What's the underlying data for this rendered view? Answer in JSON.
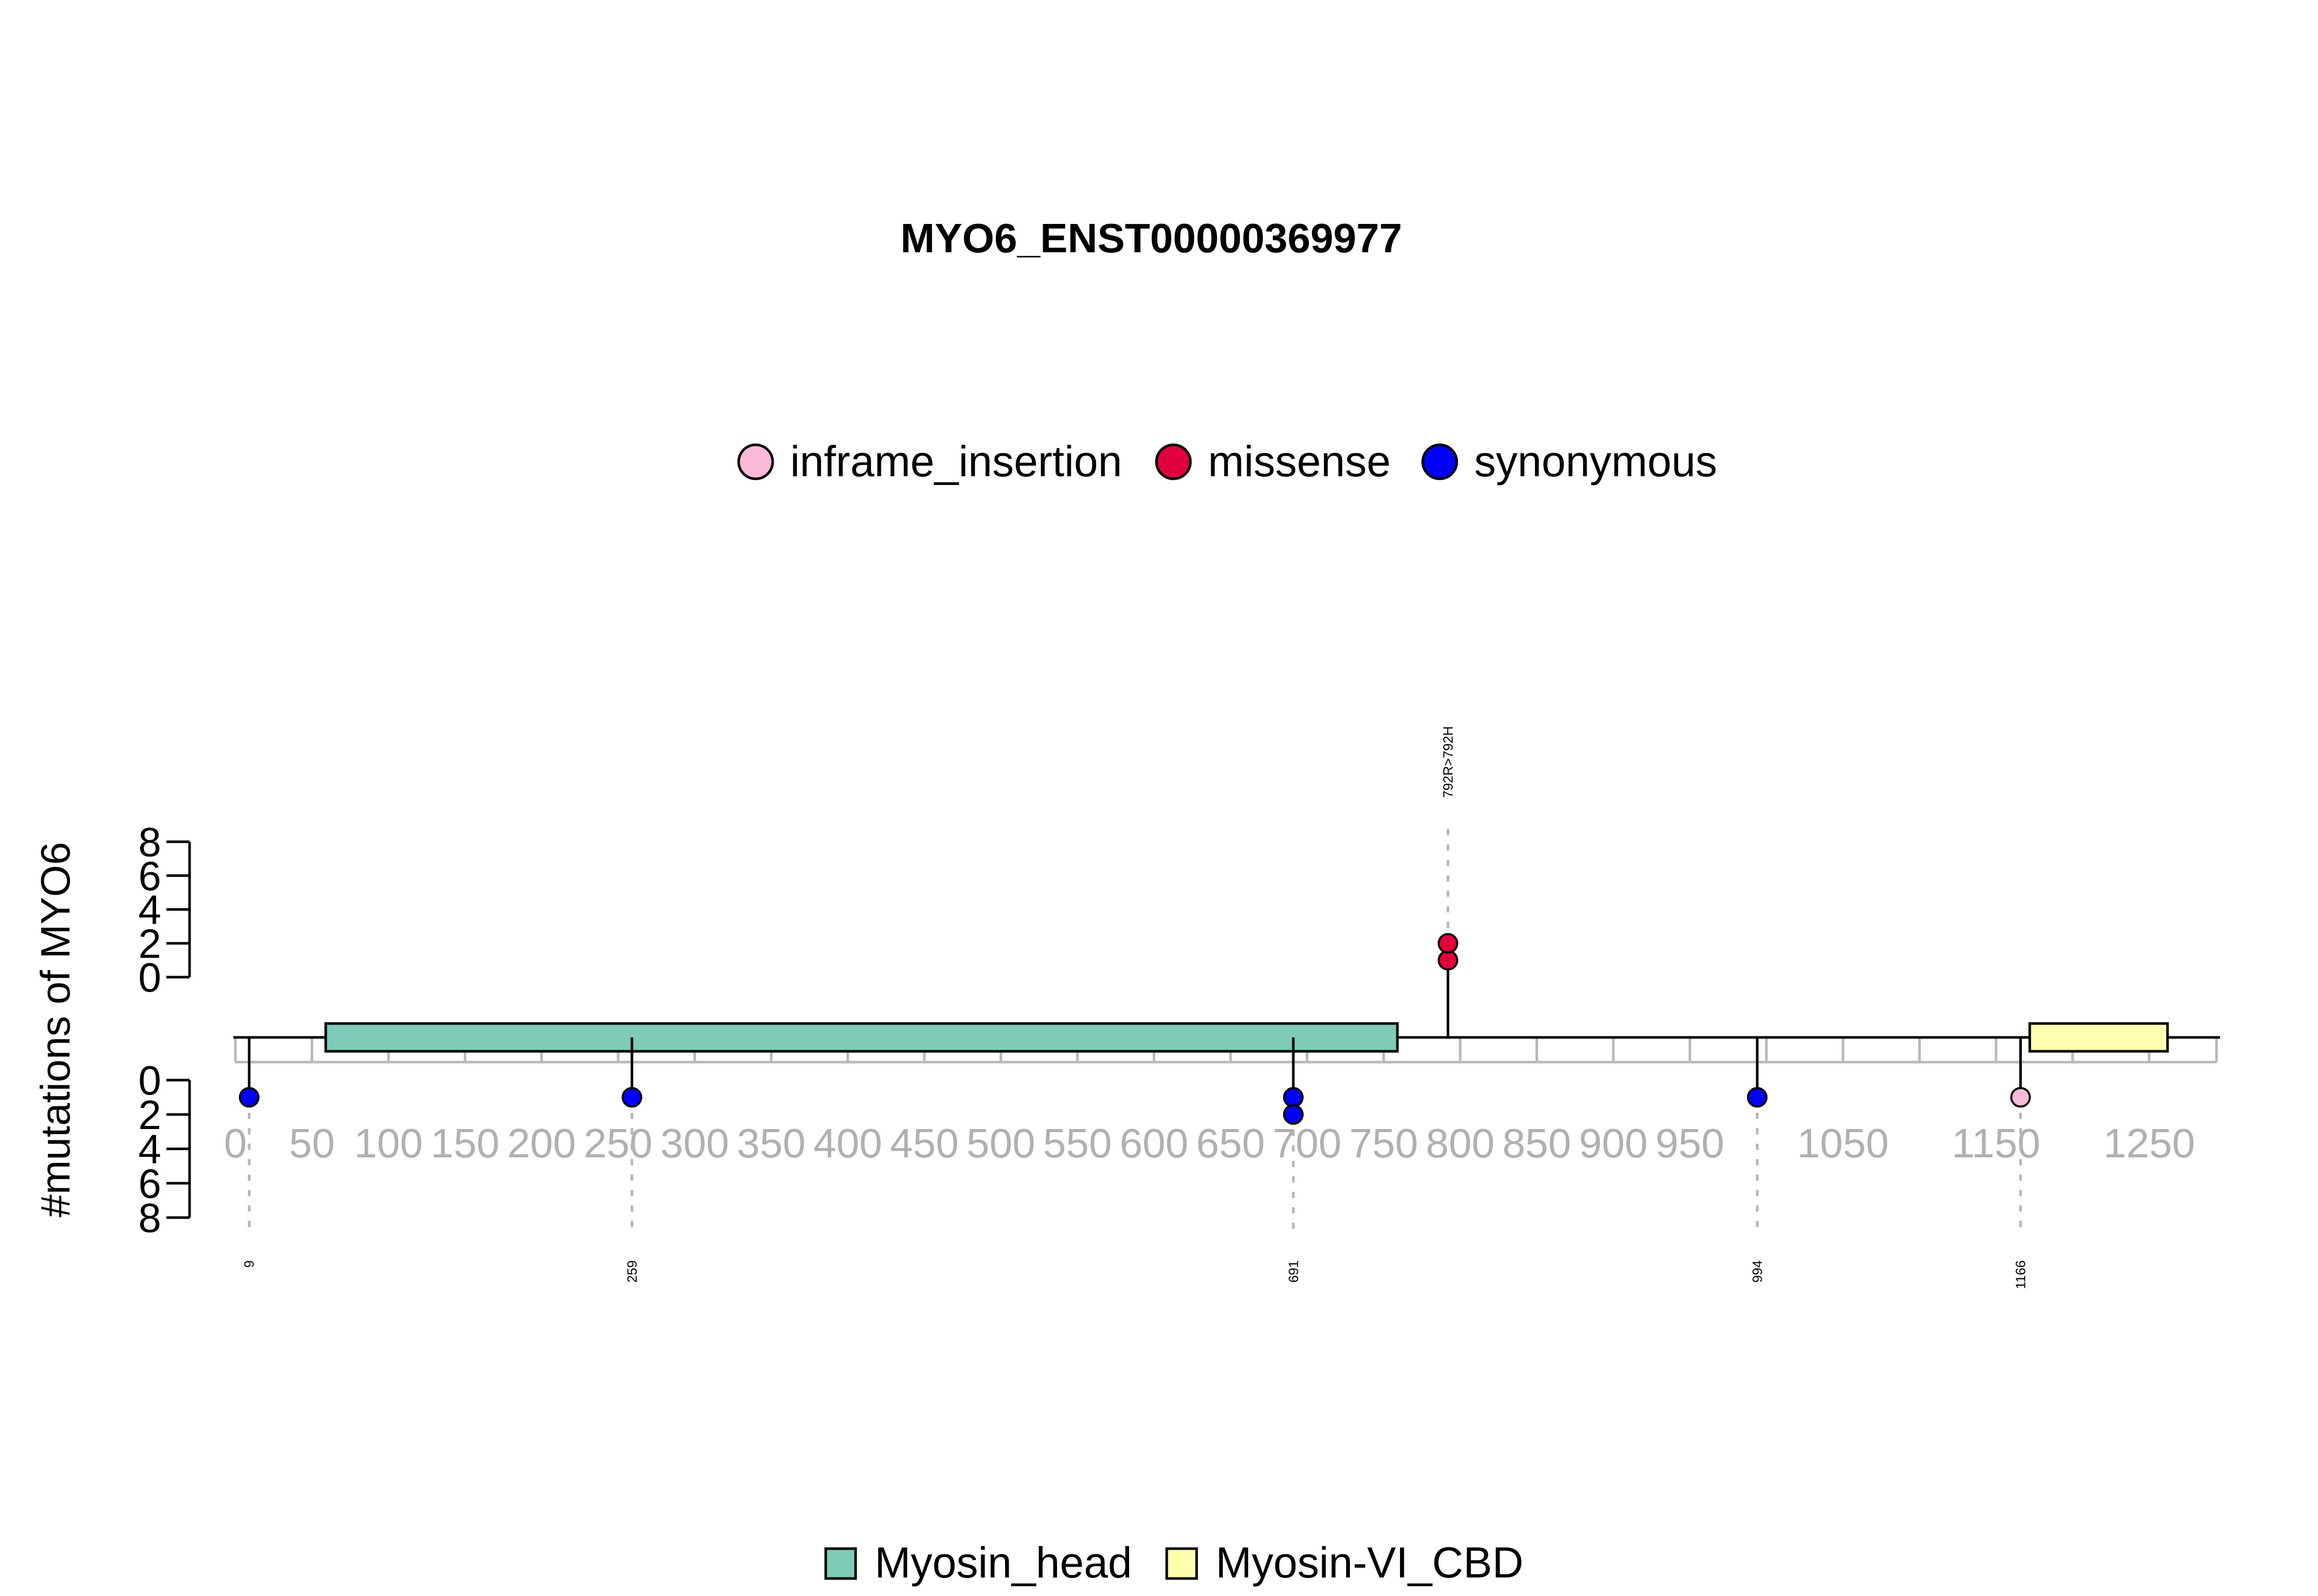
{
  "chart_data": {
    "type": "lollipop",
    "title": "MYO6_ENST00000369977",
    "ylabel": "#mutations of MYO6",
    "protein_length": 1294,
    "x_ticks": [
      "0",
      "50",
      "100",
      "150",
      "200",
      "250",
      "300",
      "350",
      "400",
      "450",
      "500",
      "550",
      "600",
      "650",
      "700",
      "750",
      "800",
      "850",
      "900",
      "950",
      "1050",
      "1150",
      "1250"
    ],
    "x_tick_values": [
      0,
      50,
      100,
      150,
      200,
      250,
      300,
      350,
      400,
      450,
      500,
      550,
      600,
      650,
      700,
      750,
      800,
      850,
      900,
      950,
      1050,
      1150,
      1250
    ],
    "minor_tick_step": 50,
    "y_upper_ticks": [
      "0",
      "2",
      "4",
      "6",
      "8"
    ],
    "y_lower_ticks": [
      "0",
      "2",
      "4",
      "6",
      "8"
    ],
    "ylim": [
      0,
      8
    ],
    "mutation_legend": [
      {
        "name": "inframe_insertion",
        "color": "#f9b9d9"
      },
      {
        "name": "missense",
        "color": "#e0003c"
      },
      {
        "name": "synonymous",
        "color": "#0000ff"
      }
    ],
    "domain_legend": [
      {
        "name": "Myosin_head",
        "color": "#7ecbb8"
      },
      {
        "name": "Myosin-VI_CBD",
        "color": "#ffffb0"
      }
    ],
    "domains": [
      {
        "name": "Myosin_head",
        "start": 59,
        "end": 759,
        "color": "#7ecbb8"
      },
      {
        "name": "Myosin-VI_CBD",
        "start": 1172,
        "end": 1262,
        "color": "#ffffb0"
      }
    ],
    "mutations": [
      {
        "position": 9,
        "count": 1,
        "type": "synonymous",
        "side": "below",
        "label": "9"
      },
      {
        "position": 259,
        "count": 1,
        "type": "synonymous",
        "side": "below",
        "label": "259"
      },
      {
        "position": 691,
        "count": 2,
        "type": "synonymous",
        "side": "below",
        "label": "691"
      },
      {
        "position": 792,
        "count": 2,
        "type": "missense",
        "side": "above",
        "label": "792R>792H"
      },
      {
        "position": 994,
        "count": 1,
        "type": "synonymous",
        "side": "below",
        "label": "994"
      },
      {
        "position": 1166,
        "count": 1,
        "type": "inframe_insertion",
        "side": "below",
        "label": "1166"
      }
    ]
  }
}
